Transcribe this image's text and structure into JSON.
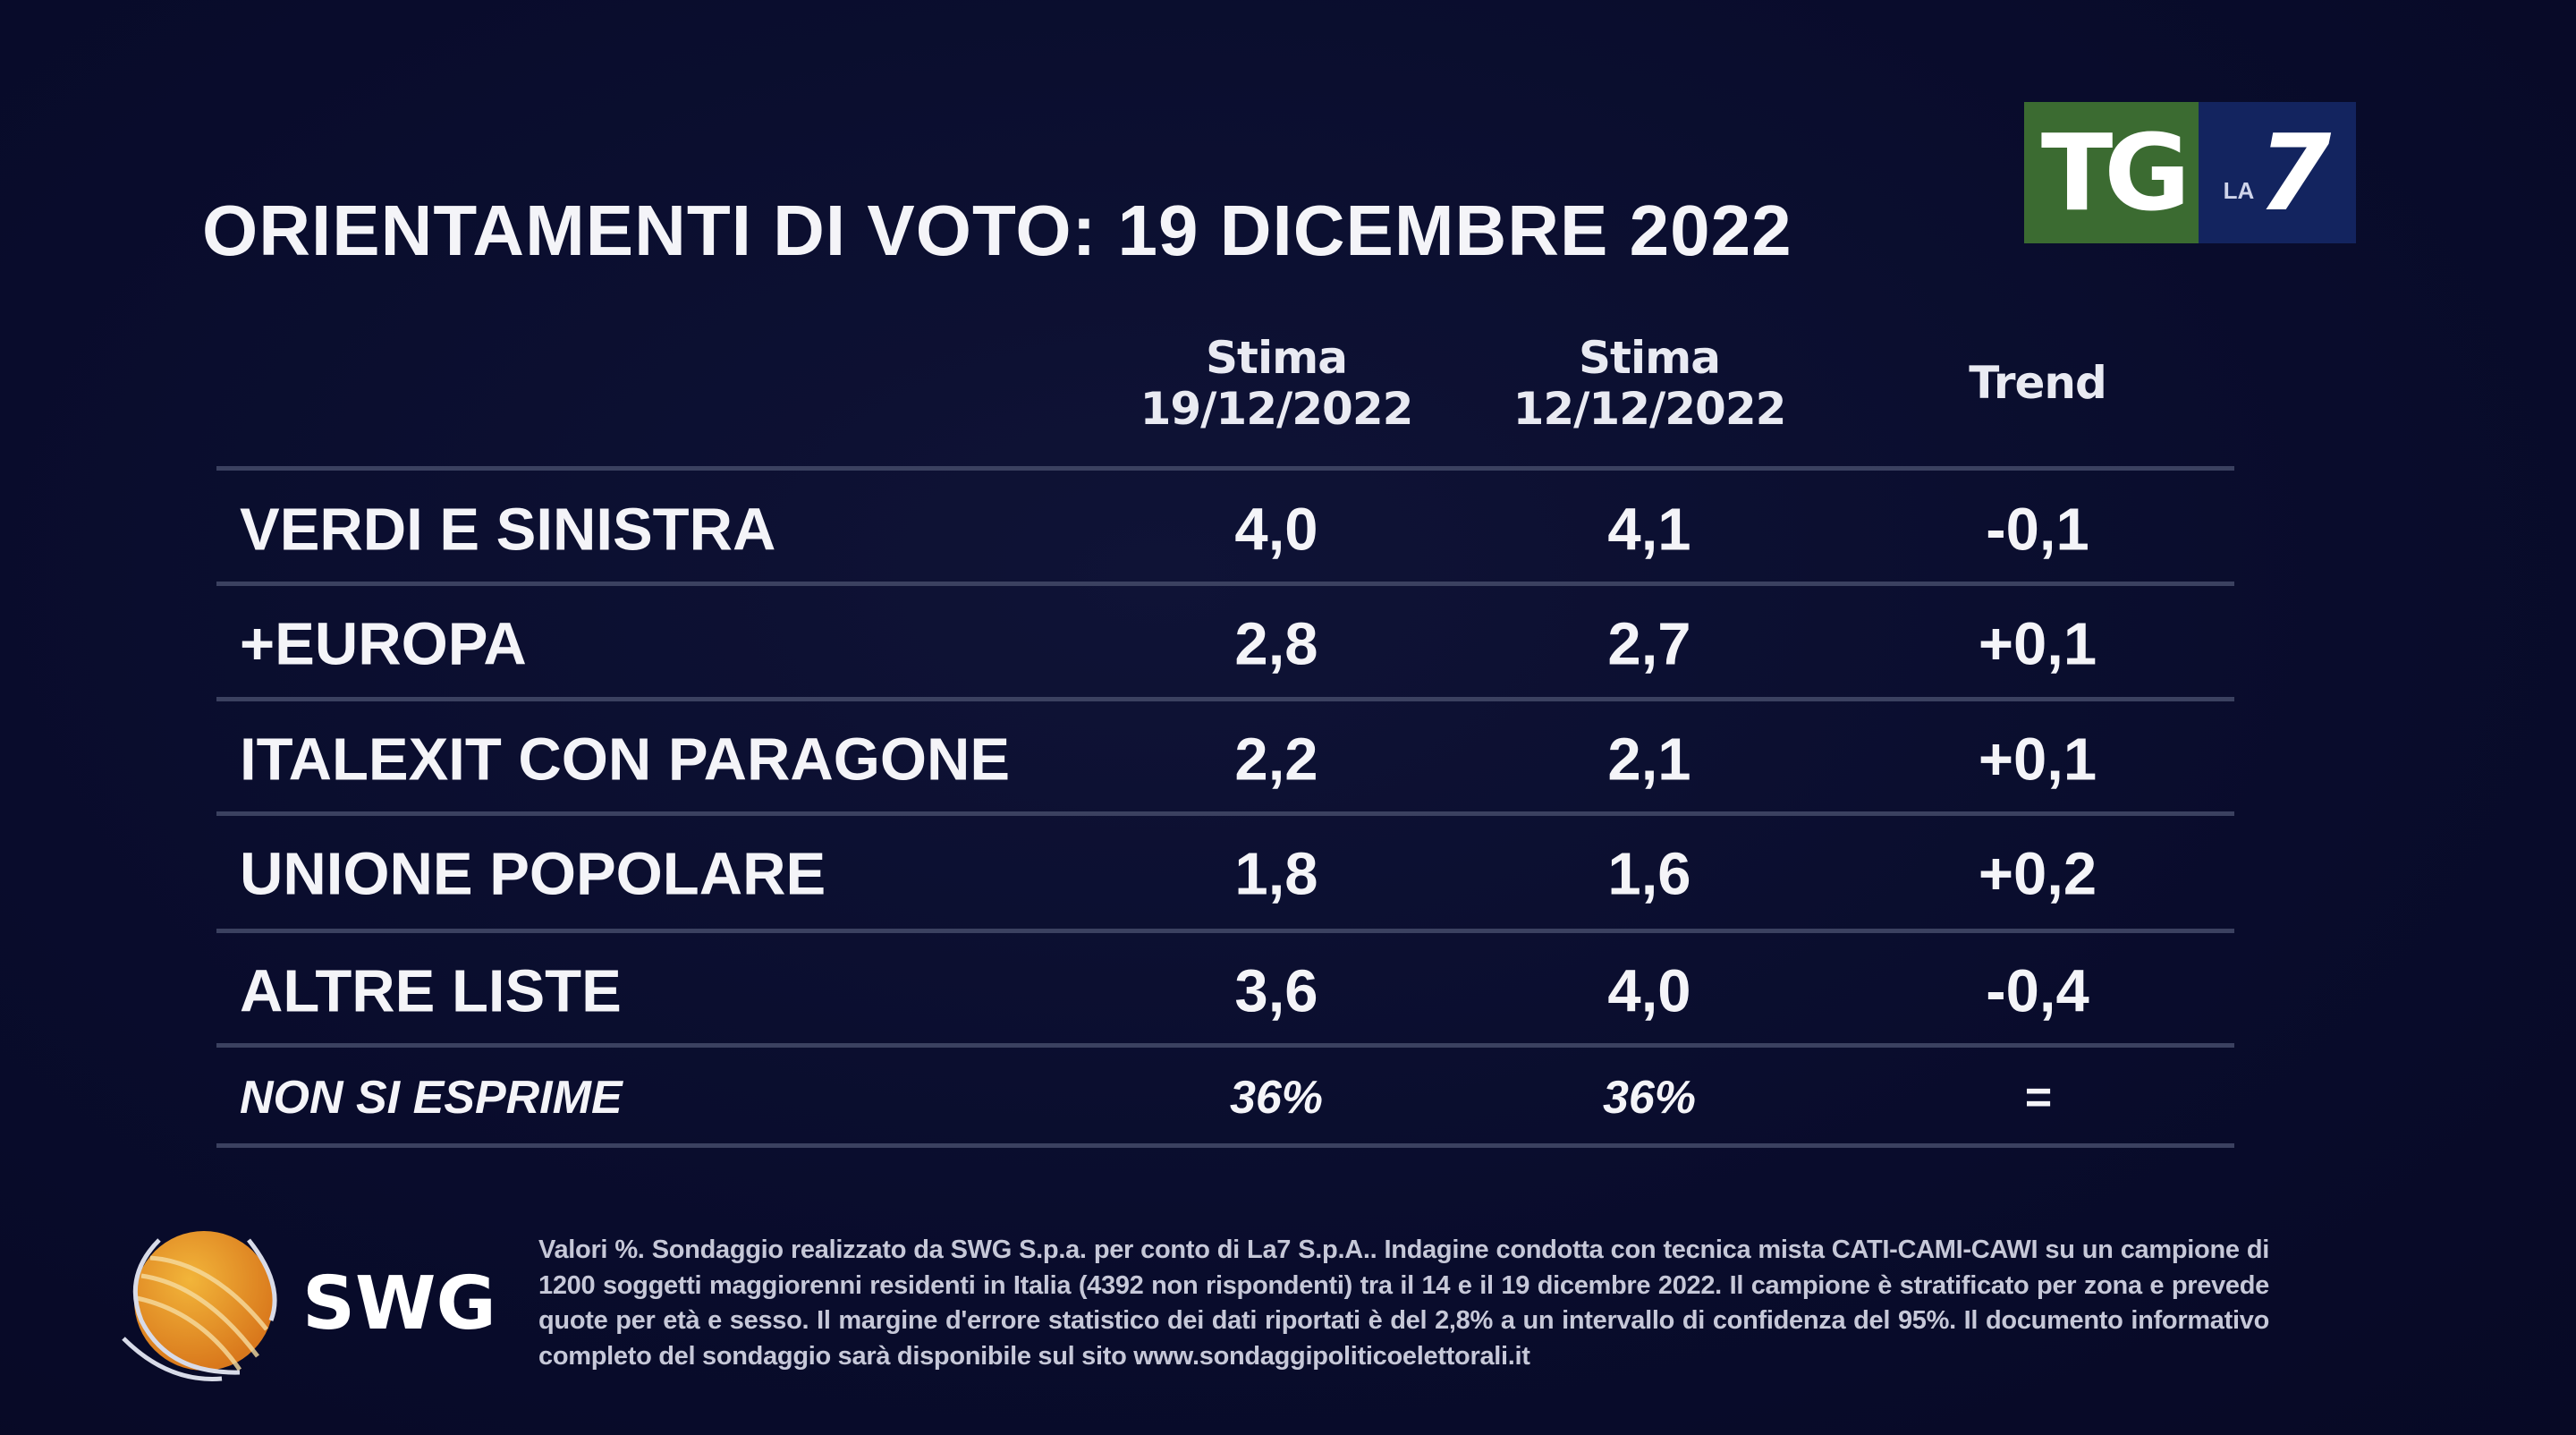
{
  "title": "ORIENTAMENTI DI VOTO: 19 DICEMBRE 2022",
  "logo": {
    "tg": "TG",
    "la": "LA",
    "seven": "7",
    "colors": {
      "green": "#3b6b31",
      "blue": "#13245f"
    }
  },
  "columns": [
    {
      "line1": "Stima",
      "line2": "19/12/2022"
    },
    {
      "line1": "Stima",
      "line2": "12/12/2022"
    },
    {
      "line1": "Trend",
      "line2": ""
    }
  ],
  "rows": [
    {
      "party": "VERDI E SINISTRA",
      "stima_19": "4,0",
      "stima_12": "4,1",
      "trend": "-0,1"
    },
    {
      "party": "+EUROPA",
      "stima_19": "2,8",
      "stima_12": "2,7",
      "trend": "+0,1"
    },
    {
      "party": "ITALEXIT CON PARAGONE",
      "stima_19": "2,2",
      "stima_12": "2,1",
      "trend": "+0,1"
    },
    {
      "party": "UNIONE POPOLARE",
      "stima_19": "1,8",
      "stima_12": "1,6",
      "trend": "+0,2"
    },
    {
      "party": "ALTRE LISTE",
      "stima_19": "3,6",
      "stima_12": "4,0",
      "trend": "-0,4"
    },
    {
      "party": "NON SI ESPRIME",
      "stima_19": "36%",
      "stima_12": "36%",
      "trend": "="
    }
  ],
  "source_logo": {
    "text": "SWG"
  },
  "footnote": "Valori %. Sondaggio realizzato da SWG S.p.a. per conto di La7 S.p.A.. Indagine condotta con tecnica mista CATI-CAMI-CAWI su un campione di 1200 soggetti maggiorenni residenti in Italia (4392 non rispondenti) tra il 14 e il 19 dicembre 2022. Il campione è stratificato per zona e prevede quote per età e sesso. Il margine d'errore statistico dei dati riportati è del 2,8% a un intervallo di confidenza del 95%. Il documento informativo completo del sondaggio sarà disponibile sul sito www.sondaggipoliticoelettorali.it"
}
